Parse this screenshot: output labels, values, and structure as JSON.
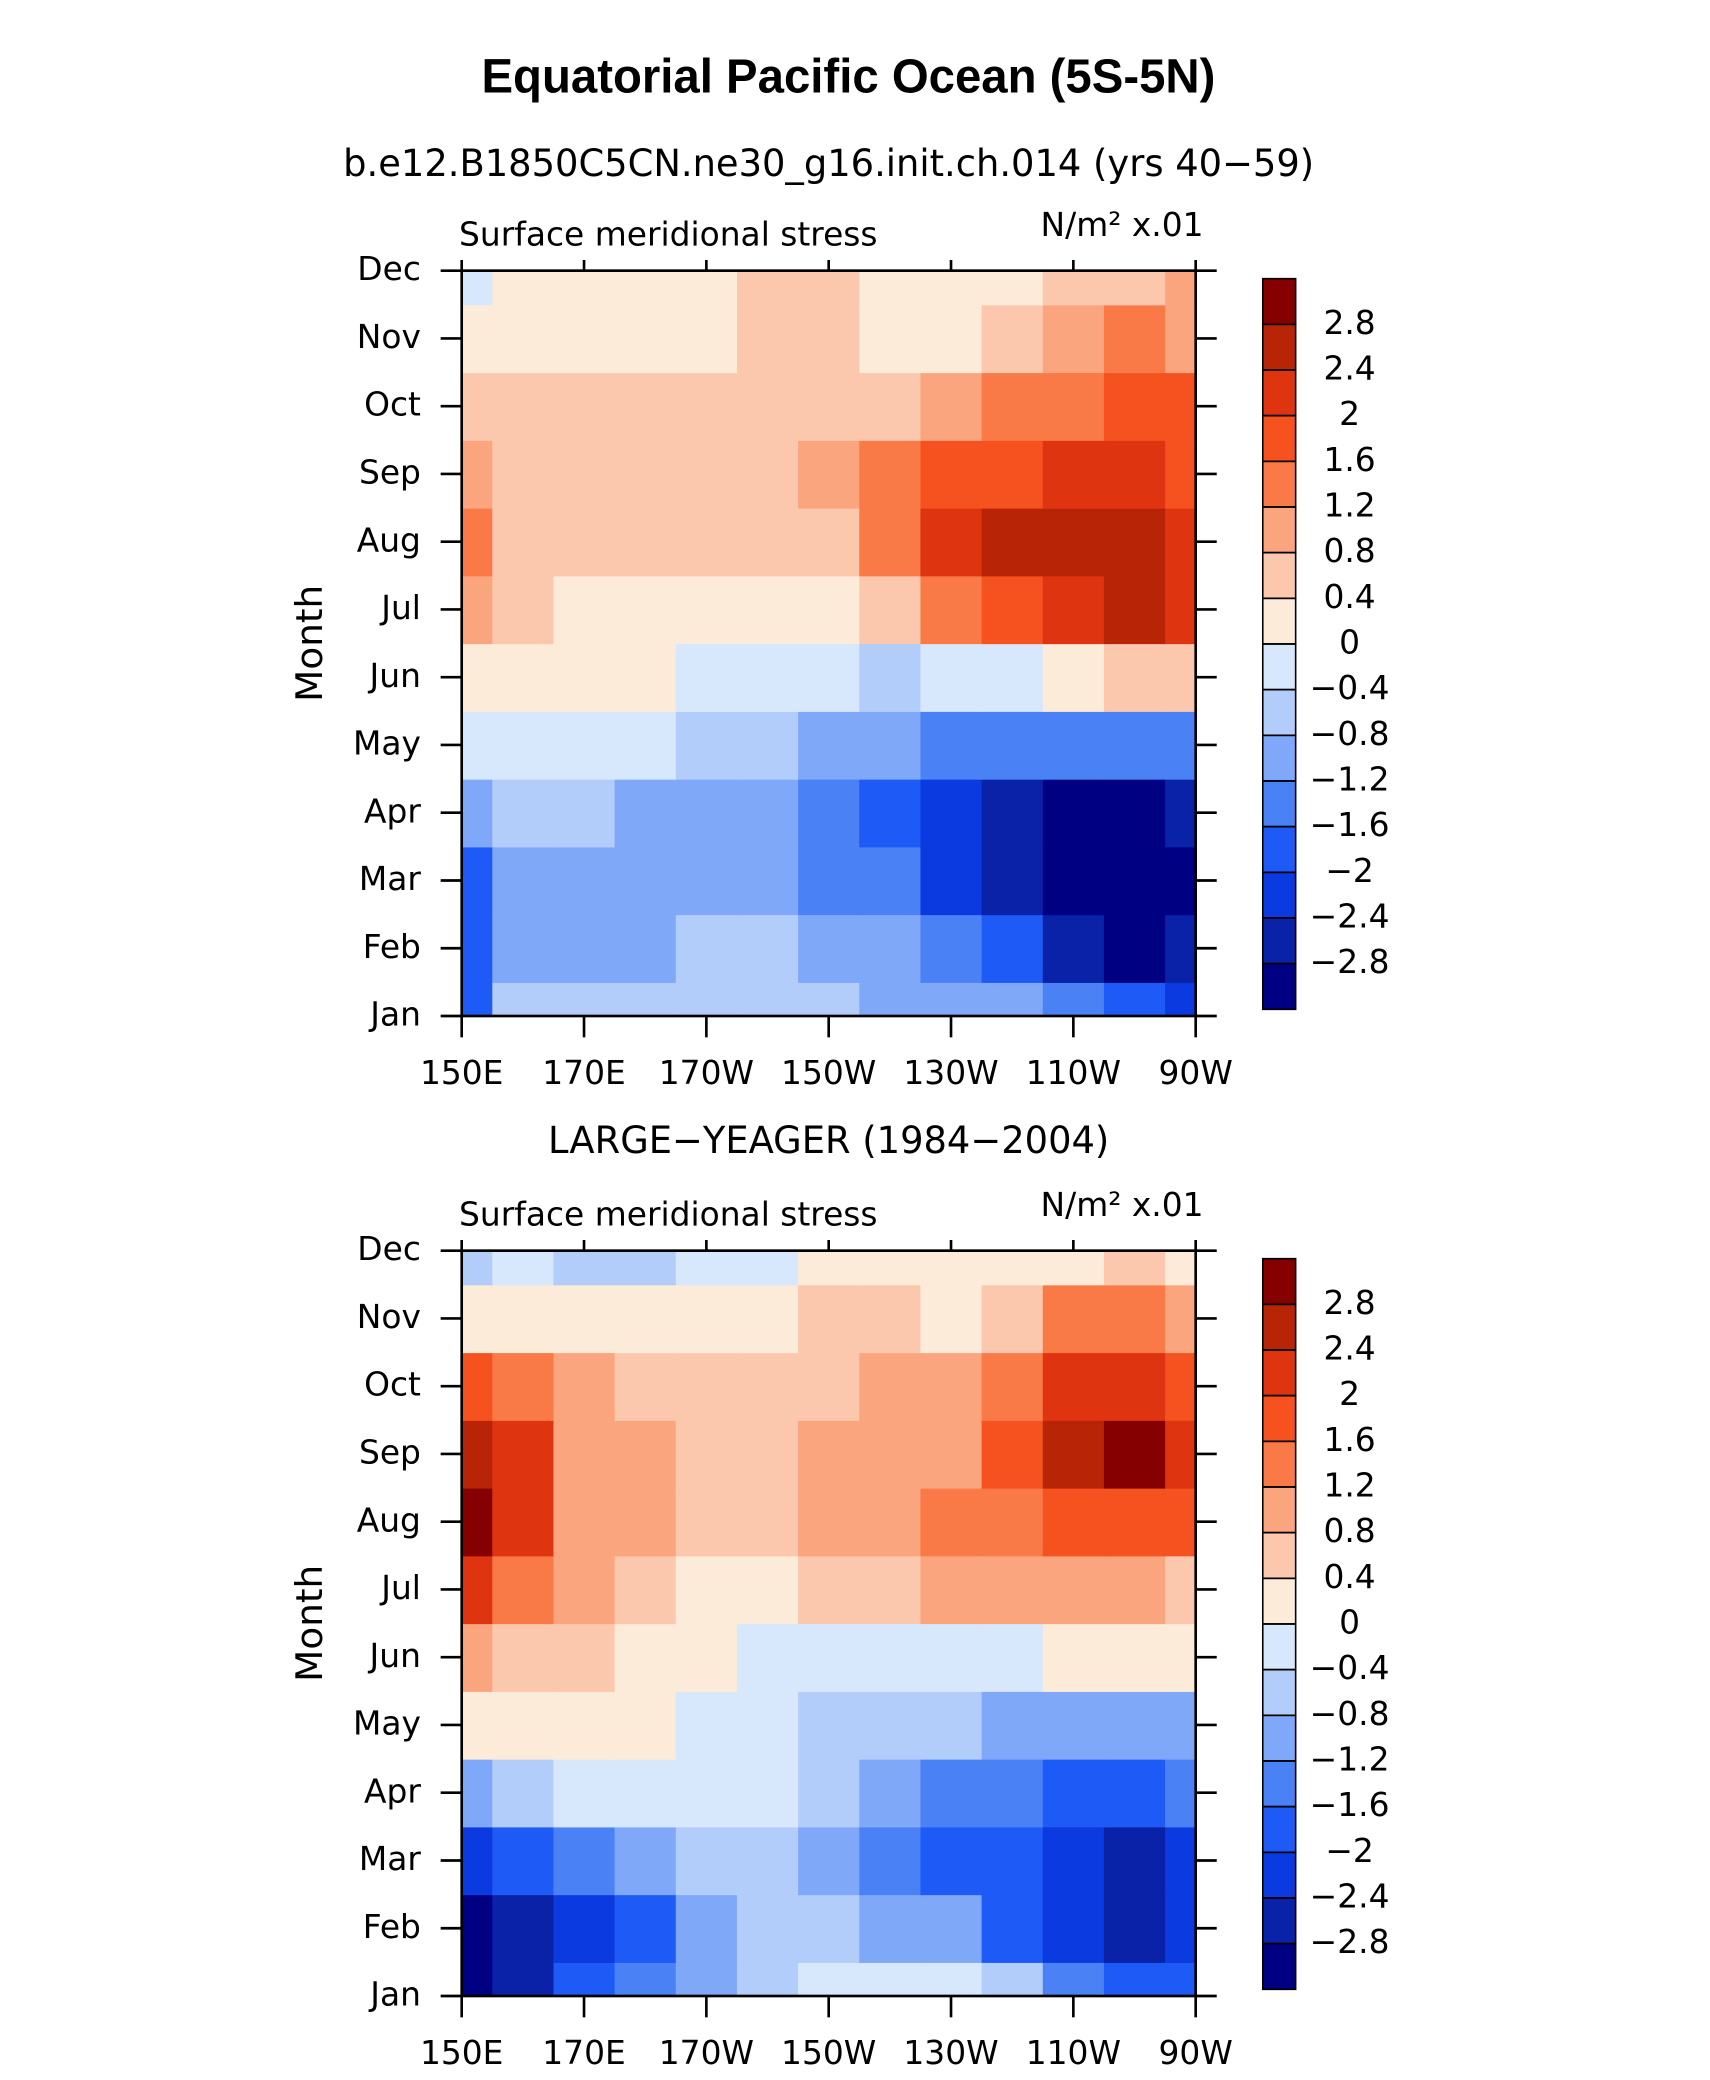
{
  "chart_data": [
    {
      "type": "contour",
      "title": "Equatorial Pacific Ocean (5S-5N)",
      "subtitle": "b.e12.B1850C5CN.ne30_g16.init.ch.014 (yrs 40−59)",
      "left_label": "Surface meridional stress",
      "right_label": "N/m² x.01",
      "ylabel": "Month",
      "categories": [
        "Jan",
        "Feb",
        "Mar",
        "Apr",
        "May",
        "Jun",
        "Jul",
        "Aug",
        "Sep",
        "Oct",
        "Nov",
        "Dec"
      ],
      "x": [
        150,
        160,
        170,
        180,
        190,
        200,
        210,
        220,
        230,
        240,
        250,
        260,
        270
      ],
      "xlim": [
        150,
        270
      ],
      "xticks": [
        {
          "value": 150,
          "label": "150E"
        },
        {
          "value": 170,
          "label": "170E"
        },
        {
          "value": 190,
          "label": "170W"
        },
        {
          "value": 210,
          "label": "150W"
        },
        {
          "value": 230,
          "label": "130W"
        },
        {
          "value": 250,
          "label": "110W"
        },
        {
          "value": 270,
          "label": "90W"
        }
      ],
      "values": [
        [
          -1.8,
          -0.8,
          -0.6,
          -0.6,
          -0.6,
          -0.6,
          -0.7,
          -0.9,
          -1.0,
          -1.2,
          -1.6,
          -2.0,
          -2.2
        ],
        [
          -1.8,
          -1.0,
          -1.0,
          -1.0,
          -0.7,
          -0.6,
          -0.9,
          -1.1,
          -1.3,
          -1.8,
          -2.6,
          -3.0,
          -2.6
        ],
        [
          -1.8,
          -1.2,
          -1.2,
          -1.0,
          -1.0,
          -1.0,
          -1.3,
          -1.6,
          -2.2,
          -2.6,
          -3.0,
          -3.2,
          -3.0
        ],
        [
          -0.9,
          -0.8,
          -0.8,
          -0.9,
          -0.9,
          -1.0,
          -1.4,
          -1.8,
          -2.2,
          -2.6,
          -3.0,
          -3.0,
          -2.8
        ],
        [
          -0.3,
          -0.3,
          -0.2,
          -0.3,
          -0.6,
          -0.8,
          -1.0,
          -1.2,
          -1.4,
          -1.4,
          -1.6,
          -1.6,
          -1.4
        ],
        [
          0.2,
          0.2,
          0.2,
          0.1,
          -0.2,
          -0.3,
          -0.4,
          -0.5,
          -0.4,
          -0.2,
          0.2,
          0.4,
          0.6
        ],
        [
          1.0,
          0.5,
          0.3,
          0.3,
          0.3,
          0.2,
          0.3,
          0.6,
          1.2,
          1.8,
          2.2,
          2.6,
          2.2
        ],
        [
          1.4,
          0.6,
          0.5,
          0.5,
          0.5,
          0.5,
          0.7,
          1.4,
          2.0,
          2.4,
          2.4,
          2.6,
          2.3
        ],
        [
          1.0,
          0.6,
          0.5,
          0.5,
          0.5,
          0.5,
          0.8,
          1.2,
          1.6,
          1.8,
          2.0,
          2.0,
          1.8
        ],
        [
          0.6,
          0.5,
          0.4,
          0.5,
          0.5,
          0.6,
          0.7,
          0.7,
          0.9,
          1.2,
          1.5,
          1.6,
          1.6
        ],
        [
          0.1,
          0.2,
          0.3,
          0.3,
          0.3,
          0.6,
          0.6,
          0.2,
          0.2,
          0.5,
          0.9,
          1.2,
          1.0
        ],
        [
          -0.1,
          0.1,
          0.1,
          0.2,
          0.2,
          0.5,
          0.4,
          0.1,
          0.1,
          0.2,
          0.6,
          0.7,
          0.8
        ]
      ],
      "levels": [
        {
          "value": 2.8,
          "label": "2.8"
        },
        {
          "value": 2.4,
          "label": "2.4"
        },
        2,
        {
          "value": 1.6,
          "label": "1.6"
        },
        {
          "value": 1.2,
          "label": "1.2"
        },
        {
          "value": 0.8,
          "label": "0.8"
        },
        {
          "value": 0.4,
          "label": "0.4"
        },
        0,
        {
          "value": -0.4,
          "label": "−0.4"
        },
        {
          "value": -0.8,
          "label": "−0.8"
        },
        {
          "value": -1.2,
          "label": "−1.2"
        },
        {
          "value": -1.6,
          "label": "−1.6"
        },
        {
          "value": -2,
          "label": "−2"
        },
        {
          "value": -2.4,
          "label": "−2.4"
        },
        {
          "value": -2.8,
          "label": "−2.8"
        }
      ],
      "colors": [
        "#850000",
        "#b82406",
        "#de3410",
        "#f5521f",
        "#fa7a47",
        "#fba57f",
        "#fcc8ad",
        "#fdebd9",
        "#d8e8fc",
        "#b3cdfa",
        "#80a8f8",
        "#4a82f5",
        "#1e5af5",
        "#0a3ae0",
        "#0a22a8",
        "#000083"
      ]
    },
    {
      "type": "contour",
      "subtitle": "LARGE−YEAGER (1984−2004)",
      "left_label": "Surface meridional stress",
      "right_label": "N/m² x.01",
      "ylabel": "Month",
      "categories": [
        "Jan",
        "Feb",
        "Mar",
        "Apr",
        "May",
        "Jun",
        "Jul",
        "Aug",
        "Sep",
        "Oct",
        "Nov",
        "Dec"
      ],
      "x": [
        150,
        160,
        170,
        180,
        190,
        200,
        210,
        220,
        230,
        240,
        250,
        260,
        270
      ],
      "xlim": [
        150,
        270
      ],
      "xticks": [
        {
          "value": 150,
          "label": "150E"
        },
        {
          "value": 170,
          "label": "170E"
        },
        {
          "value": 190,
          "label": "170W"
        },
        {
          "value": 210,
          "label": "150W"
        },
        {
          "value": 230,
          "label": "130W"
        },
        {
          "value": 250,
          "label": "110W"
        },
        {
          "value": 270,
          "label": "90W"
        }
      ],
      "values": [
        [
          -3.0,
          -2.6,
          -1.8,
          -1.6,
          -1.2,
          -0.8,
          -0.4,
          -0.3,
          -0.4,
          -0.8,
          -1.6,
          -2.0,
          -1.8
        ],
        [
          -3.2,
          -2.6,
          -2.2,
          -2.0,
          -1.2,
          -0.8,
          -0.8,
          -1.0,
          -1.2,
          -1.8,
          -2.2,
          -2.6,
          -2.4
        ],
        [
          -2.4,
          -2.0,
          -1.6,
          -1.2,
          -0.8,
          -0.6,
          -1.0,
          -1.6,
          -1.8,
          -2.0,
          -2.4,
          -2.6,
          -2.4
        ],
        [
          -1.0,
          -0.6,
          -0.4,
          -0.3,
          -0.4,
          -0.4,
          -0.8,
          -1.2,
          -1.6,
          -1.6,
          -1.8,
          -1.8,
          -1.6
        ],
        [
          0.3,
          0.3,
          0.3,
          0.2,
          -0.2,
          -0.4,
          -0.6,
          -0.7,
          -0.8,
          -0.9,
          -1.0,
          -1.0,
          -1.0
        ],
        [
          1.0,
          0.5,
          0.4,
          0.3,
          0.1,
          -0.1,
          -0.2,
          -0.3,
          -0.3,
          -0.2,
          0.0,
          0.1,
          0.2
        ],
        [
          2.2,
          1.4,
          0.9,
          0.6,
          0.3,
          0.3,
          0.5,
          0.7,
          0.9,
          1.0,
          0.8,
          0.8,
          0.6
        ],
        [
          3.0,
          2.2,
          1.0,
          0.9,
          0.6,
          0.5,
          0.9,
          1.1,
          1.2,
          1.5,
          1.6,
          1.8,
          1.6
        ],
        [
          2.4,
          2.0,
          1.0,
          0.9,
          0.6,
          0.6,
          1.0,
          1.0,
          1.1,
          1.8,
          2.4,
          2.8,
          2.0
        ],
        [
          1.6,
          1.4,
          0.9,
          0.7,
          0.5,
          0.4,
          0.6,
          0.8,
          0.8,
          1.4,
          2.0,
          2.2,
          1.6
        ],
        [
          0.3,
          0.3,
          0.2,
          0.2,
          0.0,
          0.1,
          0.4,
          0.6,
          0.3,
          0.6,
          1.2,
          1.4,
          1.0
        ],
        [
          -0.6,
          -0.4,
          -0.5,
          -0.5,
          -0.4,
          -0.2,
          0.2,
          0.3,
          0.2,
          0.1,
          0.3,
          0.4,
          0.2
        ]
      ],
      "levels": [
        {
          "value": 2.8,
          "label": "2.8"
        },
        {
          "value": 2.4,
          "label": "2.4"
        },
        2,
        {
          "value": 1.6,
          "label": "1.6"
        },
        {
          "value": 1.2,
          "label": "1.2"
        },
        {
          "value": 0.8,
          "label": "0.8"
        },
        {
          "value": 0.4,
          "label": "0.4"
        },
        0,
        {
          "value": -0.4,
          "label": "−0.4"
        },
        {
          "value": -0.8,
          "label": "−0.8"
        },
        {
          "value": -1.2,
          "label": "−1.2"
        },
        {
          "value": -1.6,
          "label": "−1.6"
        },
        {
          "value": -2,
          "label": "−2"
        },
        {
          "value": -2.4,
          "label": "−2.4"
        },
        {
          "value": -2.8,
          "label": "−2.8"
        }
      ],
      "colors": [
        "#850000",
        "#b82406",
        "#de3410",
        "#f5521f",
        "#fa7a47",
        "#fba57f",
        "#fcc8ad",
        "#fdebd9",
        "#d8e8fc",
        "#b3cdfa",
        "#80a8f8",
        "#4a82f5",
        "#1e5af5",
        "#0a3ae0",
        "#0a22a8",
        "#000083"
      ]
    }
  ]
}
